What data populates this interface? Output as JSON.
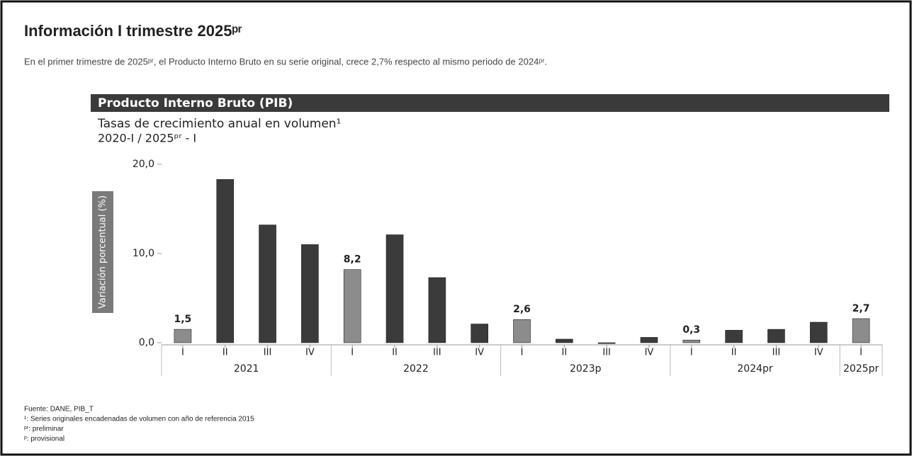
{
  "header": {
    "title": "Información I trimestre 2025ᵖʳ",
    "text": "En el primer trimestre de 2025ᵖʳ, el Producto Interno Bruto en su serie original, crece 2,7% respecto al mismo periodo de 2024ᵖʳ."
  },
  "chart_data": {
    "type": "bar",
    "title": "Producto Interno Bruto (PIB)",
    "subtitle": [
      "Tasas de crecimiento anual en volumen¹",
      "2020-I / 2025ᵖʳ - I"
    ],
    "y_label": "Variación porcentual (%)",
    "groups": [
      {
        "name": "2021",
        "categories": [
          "I",
          "II",
          "III",
          "IV"
        ]
      },
      {
        "name": "2022",
        "categories": [
          "I",
          "II",
          "III",
          "IV"
        ]
      },
      {
        "name": "2023p",
        "categories": [
          "I",
          "II",
          "III",
          "IV"
        ]
      },
      {
        "name": "2024pr",
        "categories": [
          "I",
          "II",
          "III",
          "IV"
        ]
      },
      {
        "name": "2025pr",
        "categories": [
          "I"
        ]
      }
    ],
    "values": [
      1.5,
      18.3,
      13.2,
      11.0,
      8.2,
      12.1,
      7.3,
      2.1,
      2.6,
      0.4,
      -0.1,
      0.6,
      0.3,
      1.4,
      1.5,
      2.3,
      2.7
    ],
    "value_labels": [
      "1,5",
      null,
      null,
      null,
      "8,2",
      null,
      null,
      null,
      "2,6",
      null,
      null,
      null,
      "0,3",
      null,
      null,
      null,
      "2,7"
    ],
    "colors": [
      "#8c8c8c",
      "#3b3b3b",
      "#3b3b3b",
      "#3b3b3b",
      "#8c8c8c",
      "#3b3b3b",
      "#3b3b3b",
      "#3b3b3b",
      "#8c8c8c",
      "#3b3b3b",
      "#3b3b3b",
      "#3b3b3b",
      "#8c8c8c",
      "#3b3b3b",
      "#3b3b3b",
      "#3b3b3b",
      "#8c8c8c"
    ],
    "ylim": [
      0,
      20
    ],
    "yticks": [
      {
        "value": 0,
        "label": "0,0"
      },
      {
        "value": 10,
        "label": "10,0"
      },
      {
        "value": 20,
        "label": "20,0"
      }
    ],
    "grid": false,
    "footnotes": [
      "Fuente: DANE, PIB_T",
      "¹: Series originales encadenadas de volumen con año de referencia 2015",
      "ᵖʳ: preliminar",
      "ᵖ: provisional"
    ]
  }
}
